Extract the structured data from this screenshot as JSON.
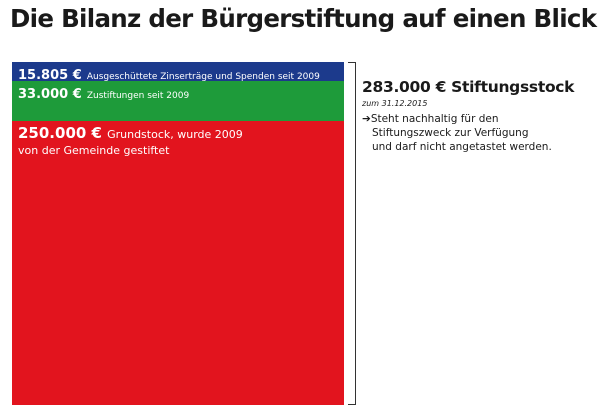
{
  "title": "Die Bilanz der Bürgerstiftung auf einen Blick",
  "chart_data": {
    "type": "stacked-bar",
    "unit": "€",
    "segments": [
      {
        "amount_label": "15.805 €",
        "value": 15805,
        "label": "Ausgeschüttete Zinserträge und Spenden seit 2009",
        "color": "#1c3a8c"
      },
      {
        "amount_label": "33.000 €",
        "value": 33000,
        "label": "Zustiftungen seit 2009",
        "color": "#1e9b3a"
      },
      {
        "amount_label": "250.000 €",
        "value": 250000,
        "label_line1": "Grundstock, wurde 2009",
        "label_line2": "von der Gemeinde gestiftet",
        "color": "#e2141e"
      }
    ],
    "total": {
      "amount_label": "283.000 € Stiftungsstock",
      "value": 283000,
      "date": "zum 31.12.2015",
      "note_line1": "Steht nachhaltig für den",
      "note_line2": "Stiftungszweck zur Verfügung",
      "note_line3": "und darf nicht angetastet werden."
    }
  }
}
